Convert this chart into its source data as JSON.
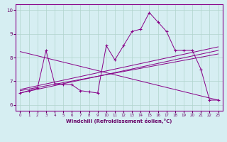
{
  "title": "",
  "xlabel": "Windchill (Refroidissement éolien,°C)",
  "ylabel": "",
  "xlim": [
    -0.5,
    23.5
  ],
  "ylim": [
    5.75,
    10.25
  ],
  "yticks": [
    6,
    7,
    8,
    9,
    10
  ],
  "xticks": [
    0,
    1,
    2,
    3,
    4,
    5,
    6,
    7,
    8,
    9,
    10,
    11,
    12,
    13,
    14,
    15,
    16,
    17,
    18,
    19,
    20,
    21,
    22,
    23
  ],
  "background_color": "#d6eef2",
  "grid_color": "#b0d4cc",
  "line_color": "#880088",
  "spine_color": "#880088",
  "label_color": "#660066",
  "data_x": [
    0,
    1,
    2,
    3,
    4,
    5,
    6,
    7,
    8,
    9,
    10,
    11,
    12,
    13,
    14,
    15,
    16,
    17,
    18,
    19,
    20,
    21,
    22,
    23
  ],
  "data_y": [
    6.5,
    6.6,
    6.7,
    8.3,
    6.9,
    6.85,
    6.85,
    6.6,
    6.55,
    6.5,
    8.5,
    7.9,
    8.5,
    9.1,
    9.2,
    9.9,
    9.5,
    9.1,
    8.3,
    8.3,
    8.3,
    7.5,
    6.2,
    6.2
  ],
  "trend1_x": [
    0,
    23
  ],
  "trend1_y": [
    8.25,
    6.2
  ],
  "trend2_x": [
    0,
    23
  ],
  "trend2_y": [
    6.5,
    8.3
  ],
  "trend3_x": [
    0,
    23
  ],
  "trend3_y": [
    6.6,
    8.15
  ],
  "trend4_x": [
    0,
    23
  ],
  "trend4_y": [
    6.65,
    8.45
  ]
}
